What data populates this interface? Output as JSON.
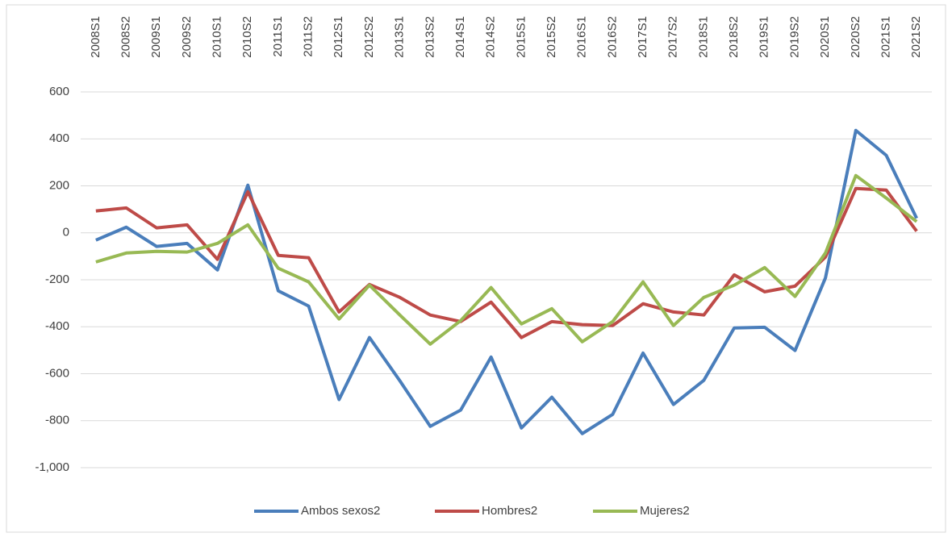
{
  "chart_data": {
    "type": "line",
    "categories": [
      "2008S1",
      "2008S2",
      "2009S1",
      "2009S2",
      "2010S1",
      "2010S2",
      "2011S1",
      "2011S2",
      "2012S1",
      "2012S2",
      "2013S1",
      "2013S2",
      "2014S1",
      "2014S2",
      "2015S1",
      "2015S2",
      "2016S1",
      "2016S2",
      "2017S1",
      "2017S2",
      "2018S1",
      "2018S2",
      "2019S1",
      "2019S2",
      "2020S1",
      "2020S2",
      "2021S1",
      "2021S2"
    ],
    "series": [
      {
        "name": "Ambos sexos2",
        "color": "#4a7ebb",
        "values": [
          -31,
          24,
          -58,
          -45,
          -158,
          203,
          -247,
          -312,
          -710,
          -446,
          -630,
          -824,
          -755,
          -529,
          -831,
          -700,
          -855,
          -773,
          -512,
          -731,
          -628,
          -405,
          -402,
          -501,
          -192,
          436,
          330,
          62
        ]
      },
      {
        "name": "Hombres2",
        "color": "#be4b48",
        "values": [
          93,
          106,
          21,
          34,
          -113,
          175,
          -96,
          -106,
          -337,
          -220,
          -275,
          -350,
          -378,
          -295,
          -446,
          -378,
          -391,
          -395,
          -302,
          -337,
          -350,
          -179,
          -251,
          -227,
          -103,
          189,
          182,
          7
        ]
      },
      {
        "name": "Mujeres2",
        "color": "#98b954",
        "values": [
          -124,
          -86,
          -79,
          -82,
          -45,
          34,
          -151,
          -209,
          -367,
          -223,
          -350,
          -474,
          -374,
          -233,
          -388,
          -323,
          -464,
          -378,
          -209,
          -395,
          -275,
          -223,
          -148,
          -271,
          -86,
          244,
          148,
          48
        ]
      }
    ],
    "ylim": [
      -1000,
      600
    ],
    "yticks": [
      {
        "value": -1000,
        "label": "-1,000"
      },
      -800,
      -600,
      -400,
      -200,
      0,
      200,
      400,
      600
    ],
    "grid": true,
    "legend": "bottom"
  }
}
